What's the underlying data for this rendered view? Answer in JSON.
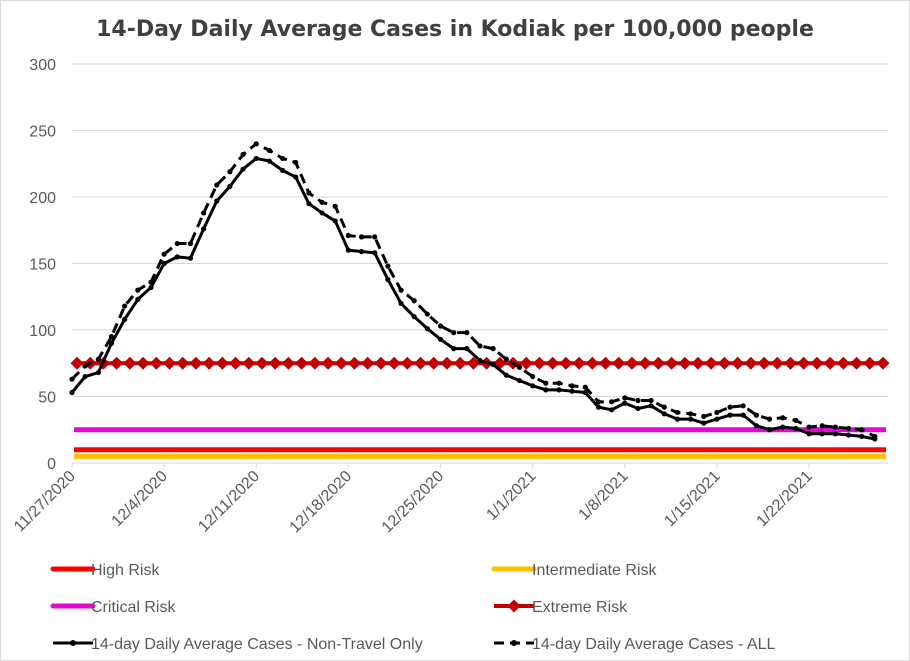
{
  "chart_data": {
    "type": "line",
    "title": "14-Day Daily Average Cases in Kodiak per 100,000 people",
    "xlabel": "",
    "ylabel": "",
    "ylim": [
      0,
      300
    ],
    "yticks": [
      0,
      50,
      100,
      150,
      200,
      250,
      300
    ],
    "grid": true,
    "legend_position": "bottom",
    "x_start": "11/27/2020",
    "x_end": "1/28/2021",
    "xtick_labels": [
      "11/27/2020",
      "12/4/2020",
      "12/11/2020",
      "12/18/2020",
      "12/25/2020",
      "1/1/2021",
      "1/8/2021",
      "1/15/2021",
      "1/22/2021"
    ],
    "series": [
      {
        "name": "High Risk",
        "style": "line",
        "color": "#ff0000",
        "values": [
          10,
          10
        ]
      },
      {
        "name": "Intermediate Risk",
        "style": "line",
        "color": "#ffc000",
        "values": [
          5,
          5
        ]
      },
      {
        "name": "Critical Risk",
        "style": "line",
        "color": "#e20ad3",
        "values": [
          25,
          25
        ]
      },
      {
        "name": "Extreme Risk",
        "style": "diamond-line",
        "color": "#c00000",
        "values": [
          75,
          75
        ]
      },
      {
        "name": "14-day Daily Average Cases - Non-Travel Only",
        "style": "solid-marker",
        "color": "#000000",
        "x": [
          "11/27/2020",
          "11/28/2020",
          "11/29/2020",
          "11/30/2020",
          "12/1/2020",
          "12/2/2020",
          "12/3/2020",
          "12/4/2020",
          "12/5/2020",
          "12/6/2020",
          "12/7/2020",
          "12/8/2020",
          "12/9/2020",
          "12/10/2020",
          "12/11/2020",
          "12/12/2020",
          "12/13/2020",
          "12/14/2020",
          "12/15/2020",
          "12/16/2020",
          "12/17/2020",
          "12/18/2020",
          "12/19/2020",
          "12/20/2020",
          "12/21/2020",
          "12/22/2020",
          "12/23/2020",
          "12/24/2020",
          "12/25/2020",
          "12/26/2020",
          "12/27/2020",
          "12/28/2020",
          "12/29/2020",
          "12/30/2020",
          "12/31/2020",
          "1/1/2021",
          "1/2/2021",
          "1/3/2021",
          "1/4/2021",
          "1/5/2021",
          "1/6/2021",
          "1/7/2021",
          "1/8/2021",
          "1/9/2021",
          "1/10/2021",
          "1/11/2021",
          "1/12/2021",
          "1/13/2021",
          "1/14/2021",
          "1/15/2021",
          "1/16/2021",
          "1/17/2021",
          "1/18/2021",
          "1/19/2021",
          "1/20/2021",
          "1/21/2021",
          "1/22/2021",
          "1/23/2021",
          "1/24/2021",
          "1/25/2021",
          "1/26/2021",
          "1/27/2021"
        ],
        "values": [
          53,
          65,
          68,
          90,
          108,
          123,
          132,
          150,
          155,
          154,
          176,
          197,
          208,
          221,
          229,
          227,
          220,
          215,
          195,
          188,
          182,
          160,
          159,
          158,
          138,
          120,
          110,
          101,
          93,
          86,
          86,
          77,
          74,
          66,
          62,
          58,
          55,
          55,
          54,
          53,
          42,
          40,
          45,
          41,
          43,
          37,
          33,
          33,
          30,
          33,
          36,
          36,
          28,
          25,
          27,
          26,
          22,
          22,
          22,
          21,
          20,
          18
        ]
      },
      {
        "name": "14-day Daily Average Cases - ALL",
        "style": "dashed-marker",
        "color": "#000000",
        "x": [
          "11/27/2020",
          "11/28/2020",
          "11/29/2020",
          "11/30/2020",
          "12/1/2020",
          "12/2/2020",
          "12/3/2020",
          "12/4/2020",
          "12/5/2020",
          "12/6/2020",
          "12/7/2020",
          "12/8/2020",
          "12/9/2020",
          "12/10/2020",
          "12/11/2020",
          "12/12/2020",
          "12/13/2020",
          "12/14/2020",
          "12/15/2020",
          "12/16/2020",
          "12/17/2020",
          "12/18/2020",
          "12/19/2020",
          "12/20/2020",
          "12/21/2020",
          "12/22/2020",
          "12/23/2020",
          "12/24/2020",
          "12/25/2020",
          "12/26/2020",
          "12/27/2020",
          "12/28/2020",
          "12/29/2020",
          "12/30/2020",
          "12/31/2020",
          "1/1/2021",
          "1/2/2021",
          "1/3/2021",
          "1/4/2021",
          "1/5/2021",
          "1/6/2021",
          "1/7/2021",
          "1/8/2021",
          "1/9/2021",
          "1/10/2021",
          "1/11/2021",
          "1/12/2021",
          "1/13/2021",
          "1/14/2021",
          "1/15/2021",
          "1/16/2021",
          "1/17/2021",
          "1/18/2021",
          "1/19/2021",
          "1/20/2021",
          "1/21/2021",
          "1/22/2021",
          "1/23/2021",
          "1/24/2021",
          "1/25/2021",
          "1/26/2021",
          "1/27/2021"
        ],
        "values": [
          63,
          73,
          78,
          95,
          118,
          130,
          136,
          157,
          165,
          165,
          188,
          209,
          219,
          232,
          240,
          235,
          229,
          226,
          203,
          196,
          193,
          171,
          170,
          170,
          148,
          130,
          122,
          112,
          103,
          98,
          98,
          88,
          86,
          78,
          72,
          65,
          60,
          60,
          58,
          57,
          46,
          46,
          49,
          47,
          47,
          42,
          38,
          37,
          35,
          38,
          42,
          43,
          36,
          33,
          34,
          32,
          27,
          28,
          27,
          26,
          25,
          20
        ]
      }
    ]
  }
}
